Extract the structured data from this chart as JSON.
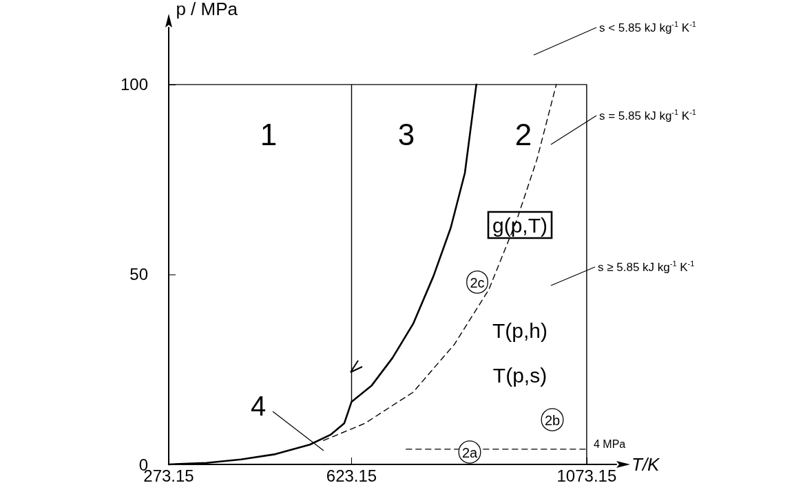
{
  "chart_data": {
    "type": "line",
    "xlabel": "T/K",
    "ylabel": "p / MPa",
    "xlim": [
      273.15,
      1130
    ],
    "ylim": [
      0,
      115
    ],
    "xticks": [
      273.15,
      623.15,
      1073.15
    ],
    "yticks": [
      0,
      50,
      100
    ],
    "grid": false,
    "marker": "none",
    "series": [
      {
        "x": [
          273.15,
          345.6,
          411.5,
          477.4,
          543.2,
          582.8,
          609.1,
          623.15,
          661.8,
          701.3,
          741,
          780,
          813,
          840,
          862
        ],
        "values": [
          0,
          0.4,
          1.3,
          2.7,
          5.2,
          7.8,
          10.8,
          16.5,
          20.8,
          28,
          37,
          49.6,
          62.3,
          76.7,
          100
        ],
        "color": "#000000",
        "line_style": "solid"
      },
      {
        "x": [
          273.15,
          273.15,
          623.15,
          623.15,
          623.15,
          1073.15,
          1073.15
        ],
        "values": [
          0,
          100,
          100,
          16.5,
          100,
          100,
          0
        ],
        "color": "#000000",
        "line_style": "solid"
      },
      {
        "x": [
          569.6,
          648.6,
          740.9,
          819.9,
          885.8,
          938.5,
          978,
          1015
        ],
        "values": [
          6.3,
          10.8,
          19,
          31.6,
          46,
          64,
          80.3,
          100
        ],
        "color": "#000000",
        "line_style": "dashed"
      },
      {
        "x": [
          727.7,
          1073.15
        ],
        "values": [
          4,
          4
        ],
        "color": "#000000",
        "line_style": "dashed"
      }
    ],
    "annotations": [
      "1",
      "3",
      "2",
      "g(p,T)",
      "2c",
      "T(p,h)",
      "T(p,s)",
      "2b",
      "2a",
      "4",
      "s < 5.85 kJ kg$^{-1}$ K$^{-1}$",
      "s = 5.85 kJ kg$^{-1}$ K$^{-1}$",
      "s ≥ 5.85 kJ kg$^{-1}$ K$^{-1}$",
      "4 MPa"
    ]
  }
}
